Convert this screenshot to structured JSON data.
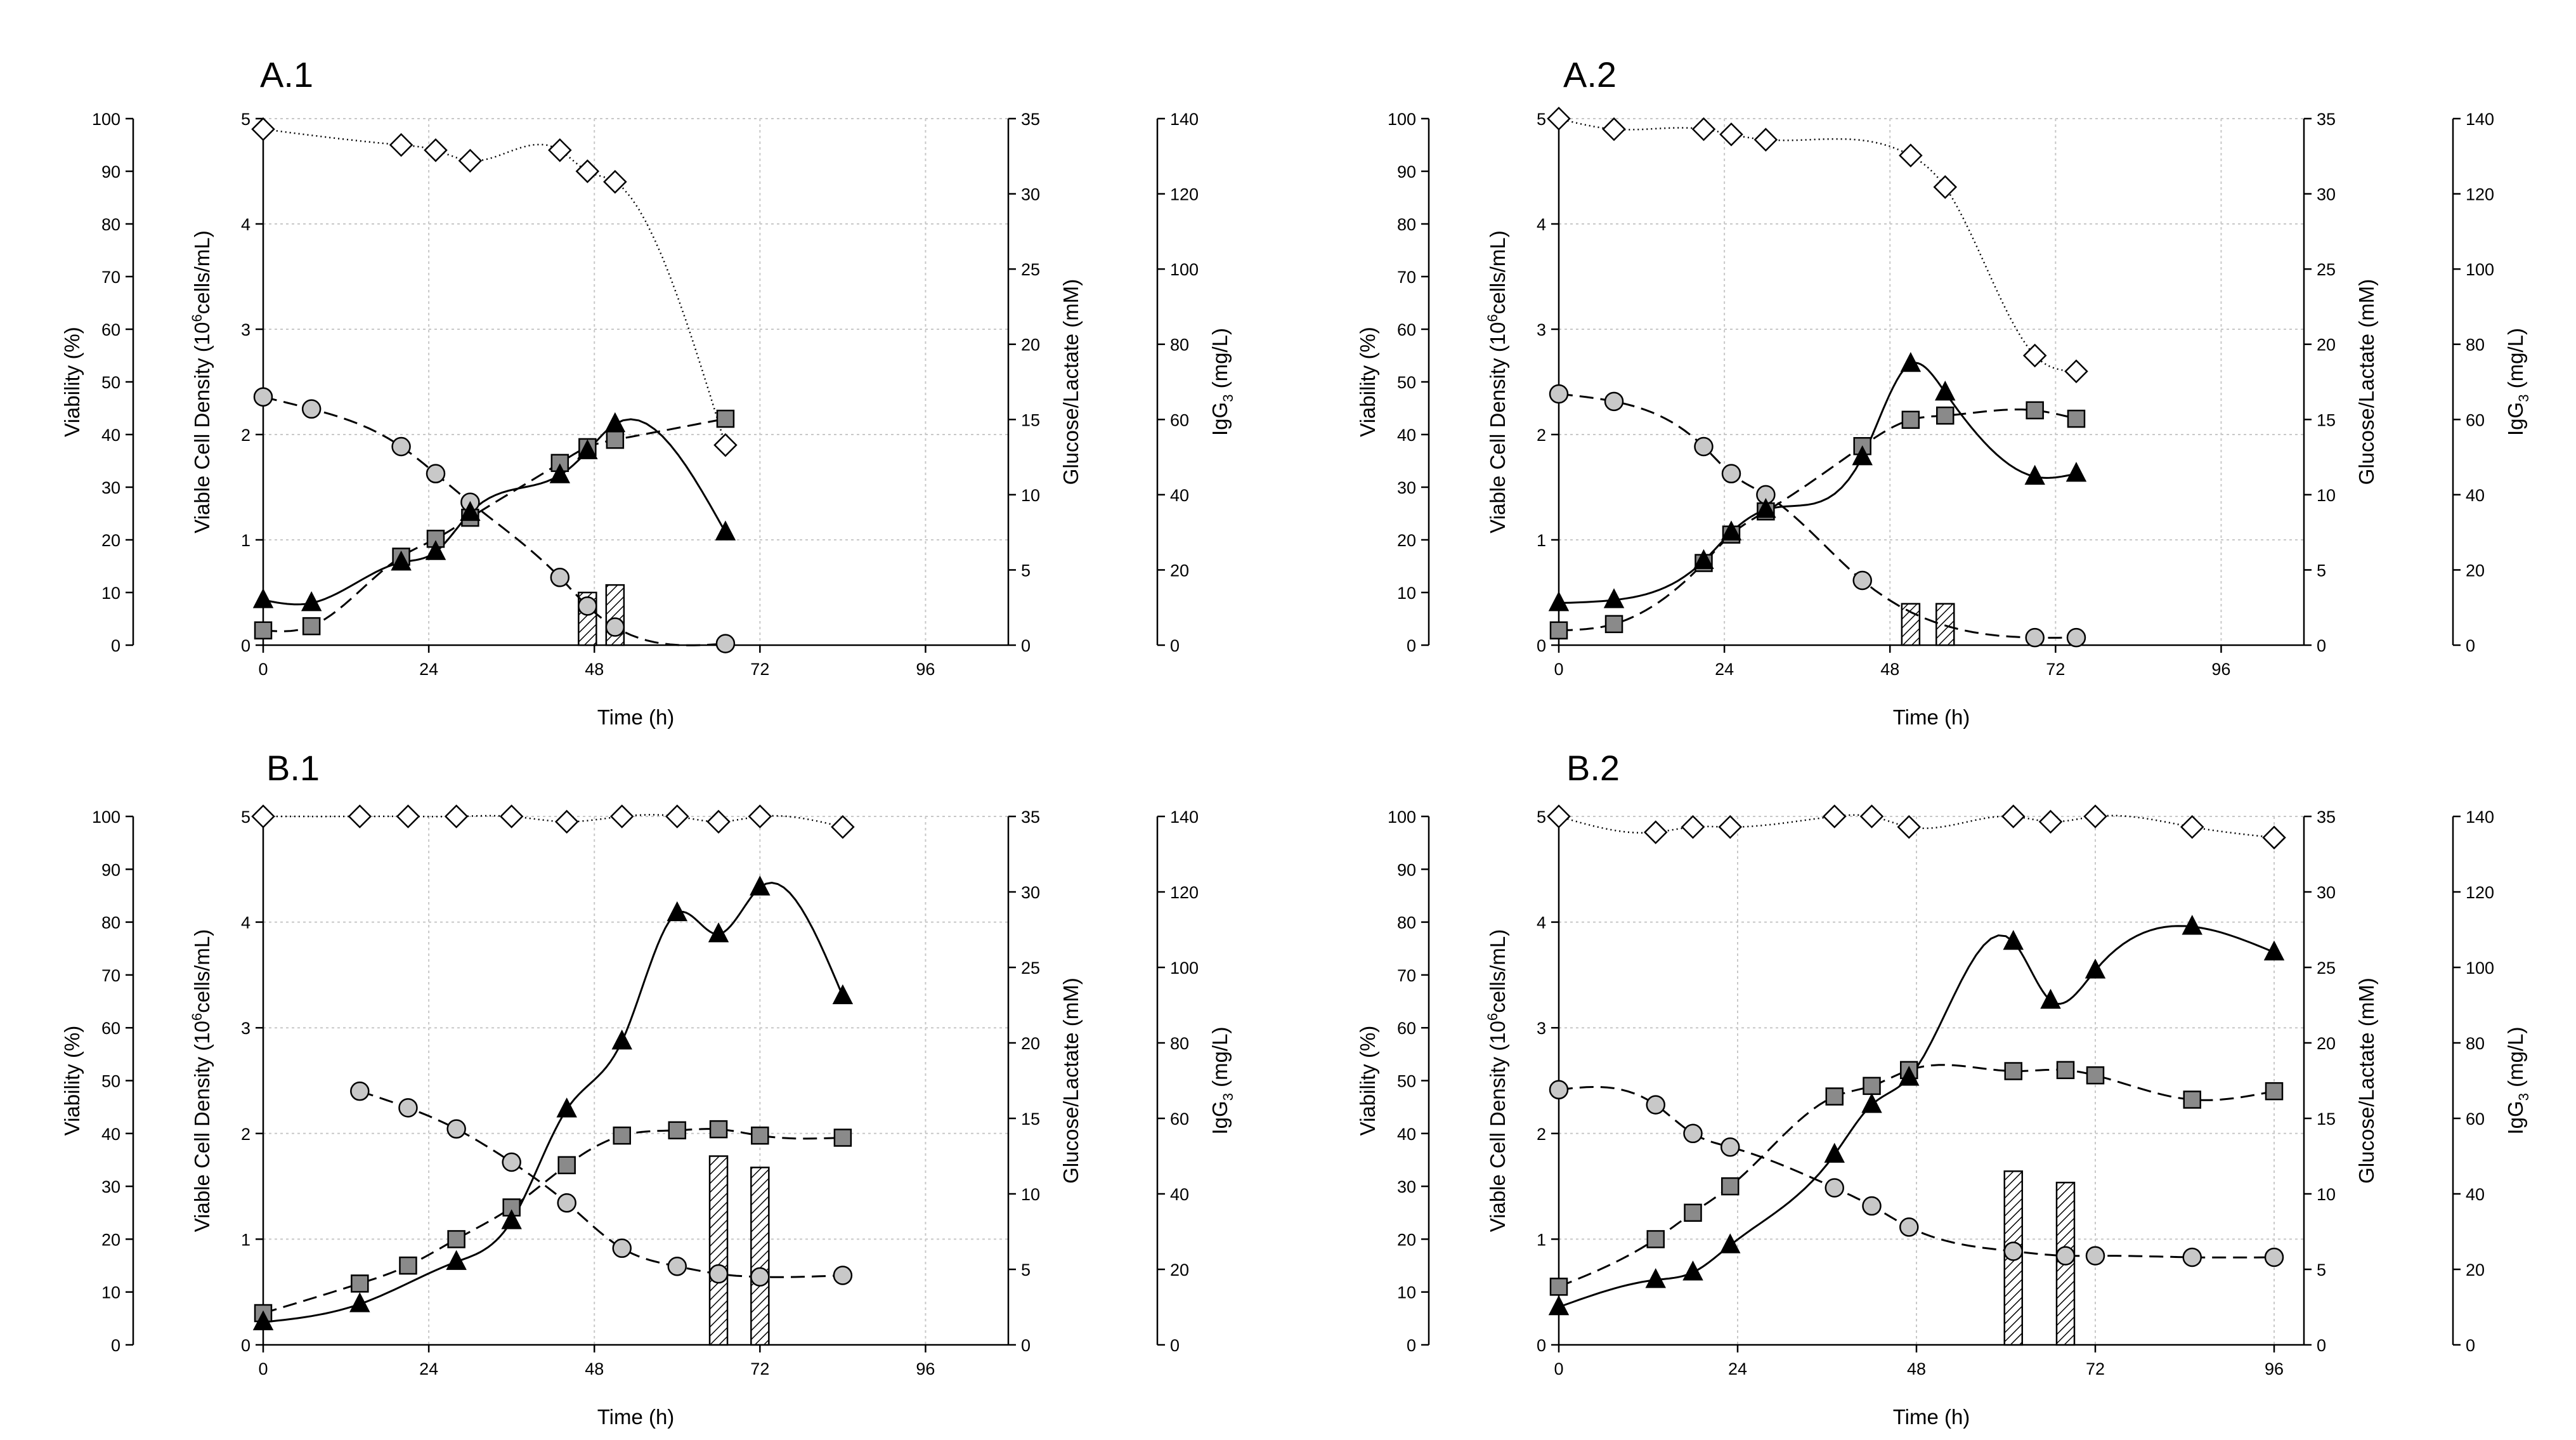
{
  "chart_data": [
    {
      "type": "scatter",
      "title": "A.1",
      "xlabel": "Time (h)",
      "ylabel_viability": "Viability (%)",
      "ylabel_vcd": "Viable Cell Density (10^6cells/mL)",
      "ylabel_glc": "Glucose/Lactate (mM)",
      "ylabel_igg": "IgG3 (mg/L)",
      "xlim": [
        0,
        108
      ],
      "xticks": [
        0,
        24,
        48,
        72,
        96
      ],
      "ylim_viability": [
        0,
        100
      ],
      "ylim_vcd": [
        0,
        5
      ],
      "ylim_glc": [
        0,
        35
      ],
      "ylim_igg": [
        0,
        140
      ],
      "grid": true,
      "series": [
        {
          "name": "Viable cell density",
          "marker": "square",
          "axis": "vcd",
          "x": [
            0,
            7,
            20,
            25,
            30,
            43,
            47,
            51,
            67
          ],
          "y": [
            0.14,
            0.18,
            0.84,
            1.01,
            1.21,
            1.73,
            1.88,
            1.95,
            2.15
          ]
        },
        {
          "name": "Glucose",
          "marker": "circle",
          "axis": "glc",
          "x": [
            0,
            7,
            20,
            25,
            30,
            43,
            47,
            51,
            67
          ],
          "y": [
            16.5,
            15.7,
            13.2,
            11.4,
            9.5,
            4.5,
            2.6,
            1.2,
            0.1
          ]
        },
        {
          "name": "Lactate",
          "marker": "triangle",
          "axis": "glc",
          "x": [
            0,
            7,
            20,
            25,
            30,
            43,
            47,
            51,
            67
          ],
          "y": [
            3.0,
            2.8,
            5.5,
            6.2,
            8.8,
            11.3,
            12.9,
            14.7,
            7.5
          ]
        },
        {
          "name": "Viability",
          "marker": "diamond",
          "axis": "viability",
          "x": [
            0,
            20,
            25,
            30,
            43,
            47,
            51,
            67
          ],
          "y": [
            98,
            95,
            94,
            92,
            94,
            90,
            88,
            38
          ]
        },
        {
          "name": "IgG3",
          "marker": "bar",
          "axis": "igg",
          "x": [
            47,
            51
          ],
          "y": [
            14,
            16
          ]
        }
      ]
    },
    {
      "type": "scatter",
      "title": "A.2",
      "xlabel": "Time (h)",
      "ylabel_viability": "Viability (%)",
      "ylabel_vcd": "Viable Cell Density (10^6cells/mL)",
      "ylabel_glc": "Glucose/Lactate (mM)",
      "ylabel_igg": "IgG3 (mg/L)",
      "xlim": [
        0,
        108
      ],
      "xticks": [
        0,
        24,
        48,
        72,
        96
      ],
      "ylim_viability": [
        0,
        100
      ],
      "ylim_vcd": [
        0,
        5
      ],
      "ylim_glc": [
        0,
        35
      ],
      "ylim_igg": [
        0,
        140
      ],
      "grid": true,
      "series": [
        {
          "name": "Viable cell density",
          "marker": "square",
          "axis": "vcd",
          "x": [
            0,
            8,
            21,
            25,
            30,
            44,
            51,
            56,
            69,
            75
          ],
          "y": [
            0.14,
            0.2,
            0.78,
            1.05,
            1.27,
            1.89,
            2.14,
            2.18,
            2.23,
            2.15
          ]
        },
        {
          "name": "Glucose",
          "marker": "circle",
          "axis": "glc",
          "x": [
            0,
            8,
            21,
            25,
            30,
            44,
            69,
            75
          ],
          "y": [
            16.7,
            16.2,
            13.2,
            11.4,
            10.0,
            4.3,
            0.5,
            0.5
          ]
        },
        {
          "name": "Lactate",
          "marker": "triangle",
          "axis": "glc",
          "x": [
            0,
            8,
            21,
            25,
            30,
            44,
            51,
            56,
            69,
            75
          ],
          "y": [
            2.8,
            3.0,
            5.6,
            7.5,
            9.0,
            12.5,
            18.7,
            16.8,
            11.2,
            11.4
          ]
        },
        {
          "name": "Viability",
          "marker": "diamond",
          "axis": "viability",
          "x": [
            0,
            8,
            21,
            25,
            30,
            51,
            56,
            69,
            75
          ],
          "y": [
            100,
            98,
            98,
            97,
            96,
            93,
            87,
            55,
            52
          ]
        },
        {
          "name": "IgG3",
          "marker": "bar",
          "axis": "igg",
          "x": [
            51,
            56
          ],
          "y": [
            11,
            11
          ]
        }
      ]
    },
    {
      "type": "scatter",
      "title": "B.1",
      "xlabel": "Time (h)",
      "ylabel_viability": "Viability (%)",
      "ylabel_vcd": "Viable Cell Density (10^6cells/mL)",
      "ylabel_glc": "Glucose/Lactate (mM)",
      "ylabel_igg": "IgG3 (mg/L)",
      "xlim": [
        0,
        108
      ],
      "xticks": [
        0,
        24,
        48,
        72,
        96
      ],
      "ylim_viability": [
        0,
        100
      ],
      "ylim_vcd": [
        0,
        5
      ],
      "ylim_glc": [
        0,
        35
      ],
      "ylim_igg": [
        0,
        140
      ],
      "grid": true,
      "series": [
        {
          "name": "Viable cell density",
          "marker": "square",
          "axis": "vcd",
          "x": [
            0,
            14,
            21,
            28,
            36,
            44,
            52,
            60,
            66,
            72,
            84
          ],
          "y": [
            0.3,
            0.58,
            0.75,
            1.0,
            1.3,
            1.7,
            1.98,
            2.03,
            2.04,
            1.98,
            1.96
          ]
        },
        {
          "name": "Glucose",
          "marker": "circle",
          "axis": "glc",
          "x": [
            14,
            21,
            28,
            36,
            44,
            52,
            60,
            66,
            72,
            84
          ],
          "y": [
            16.8,
            15.7,
            14.3,
            12.1,
            9.4,
            6.4,
            5.2,
            4.7,
            4.5,
            4.6
          ]
        },
        {
          "name": "Lactate",
          "marker": "triangle",
          "axis": "glc",
          "x": [
            0,
            14,
            28,
            36,
            44,
            52,
            60,
            66,
            72,
            84
          ],
          "y": [
            1.5,
            2.7,
            5.5,
            8.2,
            15.6,
            20.1,
            28.6,
            27.2,
            30.3,
            23.1
          ]
        },
        {
          "name": "Viability",
          "marker": "diamond",
          "axis": "viability",
          "x": [
            0,
            14,
            21,
            28,
            36,
            44,
            52,
            60,
            66,
            72,
            84
          ],
          "y": [
            100,
            100,
            100,
            100,
            100,
            99,
            100,
            100,
            99,
            100,
            98
          ]
        },
        {
          "name": "IgG3",
          "marker": "bar",
          "axis": "igg",
          "x": [
            66,
            72
          ],
          "y": [
            50,
            47
          ]
        }
      ]
    },
    {
      "type": "scatter",
      "title": "B.2",
      "xlabel": "Time (h)",
      "ylabel_viability": "Viability (%)",
      "ylabel_vcd": "Viable Cell Density (10^6cells/mL)",
      "ylabel_glc": "Glucose/Lactate (mM)",
      "ylabel_igg": "IgG3 (mg/L)",
      "xlim": [
        0,
        100
      ],
      "xticks": [
        0,
        24,
        48,
        72,
        96
      ],
      "ylim_viability": [
        0,
        100
      ],
      "ylim_vcd": [
        0,
        5
      ],
      "ylim_glc": [
        0,
        35
      ],
      "ylim_igg": [
        0,
        140
      ],
      "grid": true,
      "series": [
        {
          "name": "Viable cell density",
          "marker": "square",
          "axis": "vcd",
          "x": [
            0,
            13,
            18,
            23,
            37,
            42,
            47,
            61,
            68,
            72,
            85,
            96
          ],
          "y": [
            0.55,
            1.0,
            1.25,
            1.5,
            2.35,
            2.45,
            2.6,
            2.59,
            2.6,
            2.55,
            2.32,
            2.4
          ]
        },
        {
          "name": "Glucose",
          "marker": "circle",
          "axis": "glc",
          "x": [
            0,
            13,
            18,
            23,
            37,
            42,
            47,
            61,
            68,
            72,
            85,
            96
          ],
          "y": [
            16.9,
            15.9,
            14.0,
            13.1,
            10.4,
            9.2,
            7.8,
            6.2,
            5.9,
            5.9,
            5.8,
            5.8
          ]
        },
        {
          "name": "Lactate",
          "marker": "triangle",
          "axis": "glc",
          "x": [
            0,
            13,
            18,
            23,
            37,
            42,
            47,
            61,
            66,
            72,
            85,
            96
          ],
          "y": [
            2.5,
            4.3,
            4.8,
            6.6,
            12.6,
            15.9,
            17.7,
            26.7,
            22.8,
            24.8,
            27.7,
            26.0
          ]
        },
        {
          "name": "Viability",
          "marker": "diamond",
          "axis": "viability",
          "x": [
            0,
            13,
            18,
            23,
            37,
            42,
            47,
            61,
            66,
            72,
            85,
            96
          ],
          "y": [
            100,
            97,
            98,
            98,
            100,
            100,
            98,
            100,
            99,
            100,
            98,
            96
          ]
        },
        {
          "name": "IgG3",
          "marker": "bar",
          "axis": "igg",
          "x": [
            61,
            68
          ],
          "y": [
            46,
            43
          ]
        }
      ]
    }
  ]
}
